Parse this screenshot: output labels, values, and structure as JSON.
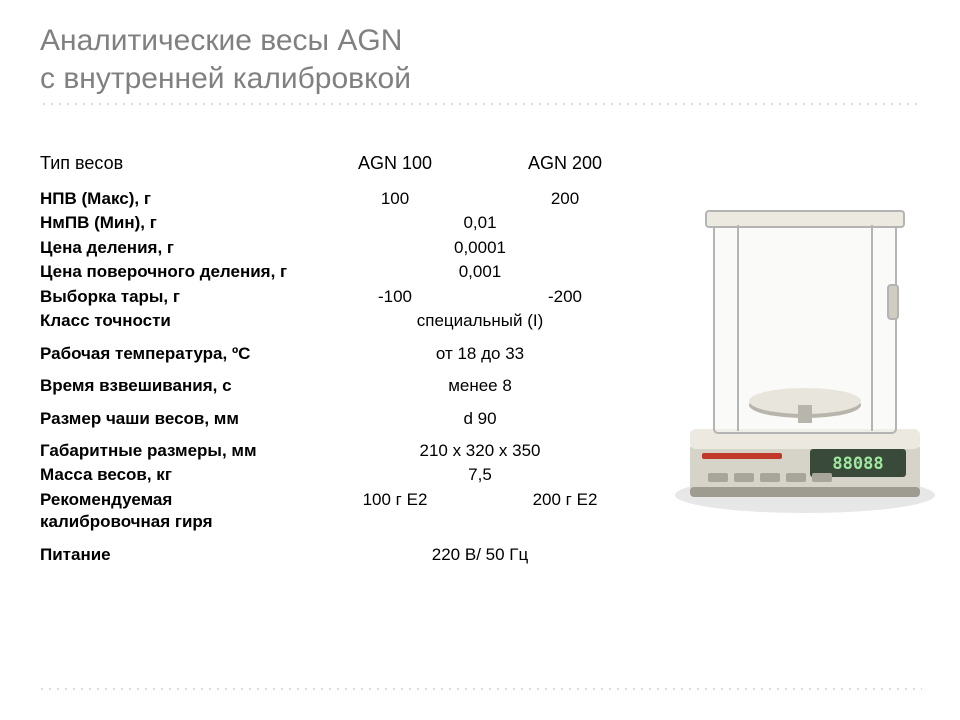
{
  "title_line1": "Аналитические весы AGN",
  "title_line2": "с внутренней калибровкой",
  "header_row": {
    "label": "Тип весов",
    "col1": "AGN 100",
    "col2": "AGN 200"
  },
  "rows": [
    {
      "label": "НПВ (Макс), г",
      "col1": "100",
      "col2": "200",
      "span": false,
      "group_first": true
    },
    {
      "label": "НмПВ (Мин), г",
      "span": true,
      "val": "0,01"
    },
    {
      "label": "Цена деления, г",
      "span": true,
      "val": "0,0001"
    },
    {
      "label": "Цена поверочного деления, г",
      "span": true,
      "val": "0,001"
    },
    {
      "label": "Выборка тары, г",
      "col1": "-100",
      "col2": "-200",
      "span": false
    },
    {
      "label": "Класс точности",
      "span": true,
      "val": "специальный (I)"
    },
    {
      "label": "Рабочая температура, ºС",
      "span": true,
      "val": "от 18 до 33",
      "group_first": true
    },
    {
      "label": "Время взвешивания, с",
      "span": true,
      "val": "менее 8",
      "group_first": true
    },
    {
      "label": "Размер чаши весов, мм",
      "span": true,
      "val": "d 90",
      "group_first": true
    },
    {
      "label": "Габаритные размеры, мм",
      "span": true,
      "val": "210 х 320 х 350",
      "group_first": true
    },
    {
      "label": "Масса весов, кг",
      "span": true,
      "val": "7,5"
    },
    {
      "label": "Рекомендуемая калибровочная гиря",
      "col1": "100 г E2",
      "col2": "200 г E2",
      "span": false
    },
    {
      "label": "Питание",
      "span": true,
      "val": "220 В/ 50 Гц",
      "group_first": true
    }
  ],
  "image": {
    "base_fill": "#d6d3c8",
    "base_top": "#eceae0",
    "base_shadow": "#9e9c90",
    "glass_stroke": "#b4b4b4",
    "glass_fill": "#f4f4f2",
    "display_bg": "#3a4a3a",
    "display_text": "#9fe89f",
    "brand_stroke": "#c0392b",
    "pan_fill": "#b8b6ac",
    "pan_top": "#e8e6dc",
    "readout": "88088"
  },
  "colors": {
    "title": "#808080",
    "text": "#000000",
    "dots": "#d0d0d0",
    "bg": "#ffffff"
  }
}
